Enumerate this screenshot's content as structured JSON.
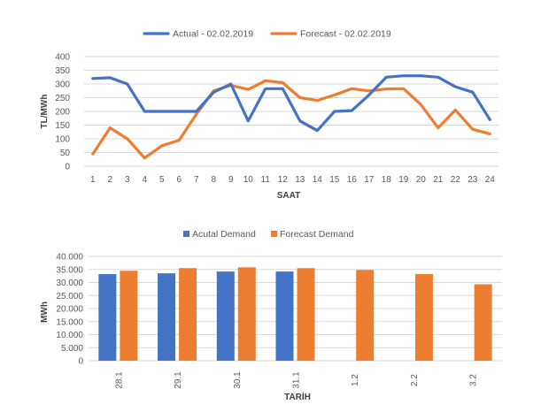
{
  "colors": {
    "actual": "#4472C4",
    "forecast": "#ED7D31",
    "grid": "#D9D9D9",
    "text": "#595959"
  },
  "chart_data": [
    {
      "type": "line",
      "title": "",
      "xlabel": "SAAT",
      "ylabel": "TL/MWh",
      "legend_position": "top-center",
      "grid": true,
      "ylim": [
        0,
        400
      ],
      "yticks": [
        0,
        50,
        100,
        150,
        200,
        250,
        300,
        350,
        400
      ],
      "x": [
        "1",
        "2",
        "3",
        "4",
        "5",
        "6",
        "7",
        "8",
        "9",
        "10",
        "11",
        "12",
        "13",
        "14",
        "15",
        "16",
        "17",
        "18",
        "19",
        "20",
        "21",
        "22",
        "23",
        "24"
      ],
      "series": [
        {
          "name": "Actual - 02.02.2019",
          "color": "#4472C4",
          "values": [
            320,
            323,
            300,
            200,
            200,
            200,
            200,
            270,
            300,
            165,
            283,
            283,
            165,
            130,
            200,
            203,
            260,
            325,
            330,
            330,
            325,
            290,
            270,
            170
          ]
        },
        {
          "name": "Forecast - 02.02.2019",
          "color": "#ED7D31",
          "values": [
            45,
            140,
            100,
            30,
            75,
            95,
            190,
            275,
            295,
            280,
            312,
            305,
            250,
            240,
            260,
            283,
            275,
            282,
            283,
            225,
            140,
            205,
            135,
            118
          ]
        }
      ]
    },
    {
      "type": "bar",
      "title": "",
      "xlabel": "TARİH",
      "ylabel": "MWh",
      "legend_position": "top-center",
      "grid": true,
      "ylim": [
        0,
        40000
      ],
      "yticks": [
        "0",
        "5.000",
        "10.000",
        "15.000",
        "20.000",
        "25.000",
        "30.000",
        "35.000",
        "40.000"
      ],
      "categories": [
        "28.1",
        "29.1",
        "30.1",
        "31.1",
        "1.2",
        "2.2",
        "3.2"
      ],
      "series": [
        {
          "name": "Acutal Demand",
          "color": "#4472C4",
          "values": [
            33200,
            33500,
            34200,
            34200,
            null,
            null,
            null
          ]
        },
        {
          "name": "Forecast Demand",
          "color": "#ED7D31",
          "values": [
            34500,
            35500,
            35800,
            35500,
            34800,
            33200,
            29300
          ]
        }
      ]
    }
  ]
}
